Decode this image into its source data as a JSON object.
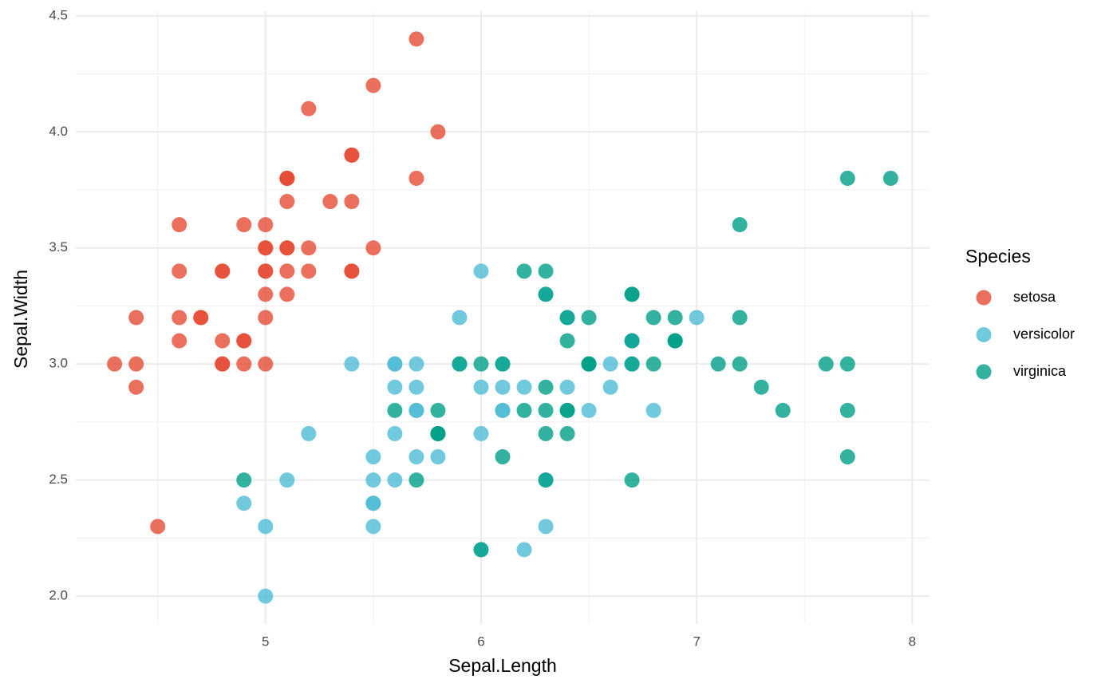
{
  "chart_data": {
    "type": "scatter",
    "x_label": "Sepal.Length",
    "y_label": "Sepal.Width",
    "legend_title": "Species",
    "legend_position": "right",
    "grid": true,
    "xlim": [
      4.12,
      8.08
    ],
    "ylim": [
      1.88,
      4.52
    ],
    "xticks": [
      5,
      6,
      7,
      8
    ],
    "yticks": [
      {
        "value": 2,
        "label": "2.0"
      },
      2.5,
      {
        "value": 3,
        "label": "3.0"
      },
      3.5,
      {
        "value": 4,
        "label": "4.0"
      },
      4.5
    ],
    "xminor_ticks": [
      4.5,
      5.5,
      6.5,
      7.5
    ],
    "yminor_ticks": [
      2.25,
      2.75,
      3.25,
      3.75,
      4.25
    ],
    "series": [
      {
        "name": "setosa",
        "color": "#E64B35",
        "x": [
          5.1,
          4.9,
          4.7,
          4.6,
          5.0,
          5.4,
          4.6,
          5.0,
          4.4,
          4.9,
          5.4,
          4.8,
          4.8,
          4.3,
          5.8,
          5.7,
          5.4,
          5.1,
          5.7,
          5.1,
          5.4,
          5.1,
          4.6,
          5.1,
          4.8,
          5.0,
          5.0,
          5.2,
          5.2,
          4.7,
          4.8,
          5.4,
          5.2,
          5.5,
          4.9,
          5.0,
          5.5,
          4.9,
          4.4,
          5.1,
          5.0,
          4.5,
          4.4,
          5.0,
          5.1,
          4.8,
          5.1,
          4.6,
          5.3,
          5.0
        ],
        "values": [
          3.5,
          3.0,
          3.2,
          3.1,
          3.6,
          3.9,
          3.4,
          3.4,
          2.9,
          3.1,
          3.7,
          3.4,
          3.0,
          3.0,
          4.0,
          4.4,
          3.9,
          3.5,
          3.8,
          3.8,
          3.4,
          3.7,
          3.6,
          3.3,
          3.4,
          3.0,
          3.4,
          3.5,
          3.4,
          3.2,
          3.1,
          3.4,
          4.1,
          4.2,
          3.1,
          3.2,
          3.5,
          3.6,
          3.0,
          3.4,
          3.5,
          2.3,
          3.2,
          3.5,
          3.8,
          3.0,
          3.8,
          3.2,
          3.7,
          3.3
        ]
      },
      {
        "name": "versicolor",
        "color": "#4DBBD5",
        "x": [
          7.0,
          6.4,
          6.9,
          5.5,
          6.5,
          5.7,
          6.3,
          4.9,
          6.6,
          5.2,
          5.0,
          5.9,
          6.0,
          6.1,
          5.6,
          6.7,
          5.6,
          5.8,
          6.2,
          5.6,
          5.9,
          6.1,
          6.3,
          6.1,
          6.4,
          6.6,
          6.8,
          6.7,
          6.0,
          5.7,
          5.5,
          5.5,
          5.8,
          6.0,
          5.4,
          6.0,
          6.7,
          6.3,
          5.6,
          5.5,
          5.5,
          6.1,
          5.8,
          5.0,
          5.6,
          5.7,
          5.7,
          6.2,
          5.1,
          5.7
        ],
        "values": [
          3.2,
          3.2,
          3.1,
          2.3,
          2.8,
          2.8,
          3.3,
          2.4,
          2.9,
          2.7,
          2.0,
          3.0,
          2.2,
          2.9,
          2.9,
          3.1,
          3.0,
          2.7,
          2.2,
          2.5,
          3.2,
          2.8,
          2.5,
          2.8,
          2.9,
          3.0,
          2.8,
          3.0,
          2.9,
          2.6,
          2.4,
          2.4,
          2.7,
          2.7,
          3.0,
          3.4,
          3.1,
          2.3,
          3.0,
          2.5,
          2.6,
          3.0,
          2.6,
          2.3,
          2.7,
          3.0,
          2.9,
          2.9,
          2.5,
          2.8
        ]
      },
      {
        "name": "virginica",
        "color": "#00A087",
        "x": [
          6.3,
          5.8,
          7.1,
          6.3,
          6.5,
          7.6,
          4.9,
          7.3,
          6.7,
          7.2,
          6.5,
          6.4,
          6.8,
          5.7,
          5.8,
          6.4,
          6.5,
          7.7,
          7.7,
          6.0,
          6.9,
          5.6,
          7.7,
          6.3,
          6.7,
          7.2,
          6.2,
          6.1,
          6.4,
          7.2,
          7.4,
          7.9,
          6.4,
          6.3,
          6.1,
          7.7,
          6.3,
          6.4,
          6.0,
          6.9,
          6.7,
          6.9,
          5.8,
          6.8,
          6.7,
          6.7,
          6.3,
          6.5,
          6.2,
          5.9
        ],
        "values": [
          3.3,
          2.7,
          3.0,
          2.9,
          3.0,
          3.0,
          2.5,
          2.9,
          2.5,
          3.6,
          3.2,
          2.7,
          3.0,
          2.5,
          2.8,
          3.2,
          3.0,
          3.8,
          2.6,
          2.2,
          3.2,
          2.8,
          2.8,
          2.7,
          3.3,
          3.2,
          2.8,
          3.0,
          2.8,
          3.0,
          2.8,
          3.8,
          2.8,
          2.8,
          2.6,
          3.0,
          3.4,
          3.1,
          3.0,
          3.1,
          3.1,
          3.1,
          2.7,
          3.2,
          3.3,
          3.0,
          2.5,
          3.0,
          3.4,
          3.0
        ]
      }
    ]
  }
}
